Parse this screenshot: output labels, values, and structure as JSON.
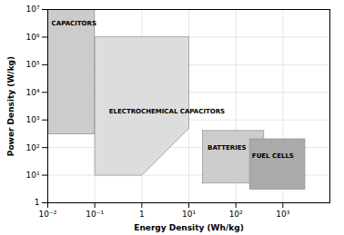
{
  "chart_data": {
    "type": "region",
    "xlabel": "Energy Density (Wh/kg)",
    "ylabel": "Power Density (W/kg)",
    "log": true,
    "grid": true,
    "xlim": [
      0.01,
      10000
    ],
    "ylim": [
      1,
      10000000
    ],
    "xticks": [
      {
        "value": 0.01,
        "label": "10⁻²"
      },
      {
        "value": 0.1,
        "label": "10⁻¹"
      },
      1,
      {
        "value": 10,
        "label": "10¹"
      },
      {
        "value": 100,
        "label": "10²"
      },
      {
        "value": 1000,
        "label": "10³"
      }
    ],
    "yticks": [
      1,
      {
        "value": 10,
        "label": "10¹"
      },
      {
        "value": 100,
        "label": "10²"
      },
      {
        "value": 1000,
        "label": "10³"
      },
      {
        "value": 10000,
        "label": "10⁴"
      },
      {
        "value": 100000,
        "label": "10⁵"
      },
      {
        "value": 1000000,
        "label": "10⁶"
      },
      {
        "value": 10000000,
        "label": "10⁷"
      }
    ],
    "series": [
      {
        "name": "CAPACITORS",
        "color": "#cccccc",
        "edgecolor": "#999999",
        "x0": 0.01,
        "x1": 0.1,
        "y0": 300,
        "y1": 10000000,
        "label_x": 0.012,
        "label_y": 4000000
      },
      {
        "name": "ELECTROCHEMICAL CAPACITORS",
        "color": "#dddddd",
        "edgecolor": "#999999",
        "x": [
          0.1,
          0.1,
          1.0,
          10.0,
          10.0
        ],
        "y": [
          1000000,
          10.0,
          10.0,
          500.0,
          1000000
        ],
        "label_x": 0.2,
        "label_y": 2000
      },
      {
        "name": "BATTERIES",
        "color": "#cccccc",
        "edgecolor": "#999999",
        "x0": 20,
        "x1": 400,
        "y0": 5,
        "y1": 400,
        "label_x": 25,
        "label_y": 100
      },
      {
        "name": "FUEL CELLS",
        "color": "#aaaaaa",
        "edgecolor": "#999999",
        "x0": 200,
        "x1": 3000,
        "y0": 3,
        "y1": 200,
        "label_x": 220,
        "label_y": 50
      }
    ]
  }
}
